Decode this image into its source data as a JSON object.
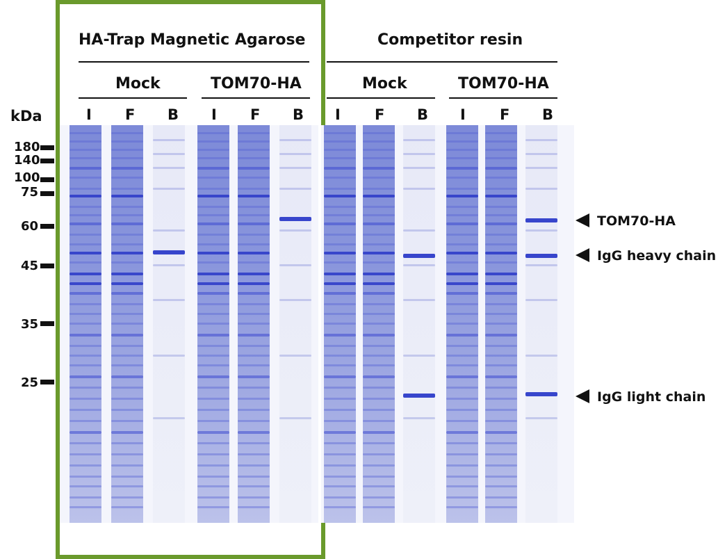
{
  "figure": {
    "group_left": "HA-Trap Magnetic Agarose",
    "group_right": "Competitor resin",
    "subgroups": [
      "Mock",
      "TOM70-HA",
      "Mock",
      "TOM70-HA"
    ],
    "lane_labels": [
      "I",
      "F",
      "B",
      "I",
      "F",
      "B",
      "I",
      "F",
      "B",
      "I",
      "F",
      "B"
    ],
    "kda_label": "kDa",
    "markers": [
      "180",
      "140",
      "100",
      "75",
      "60",
      "45",
      "35",
      "25"
    ],
    "annotations": [
      "TOM70-HA",
      "IgG heavy chain",
      "IgG light chain"
    ],
    "frame_color": "#6a9a2c",
    "stain_color": "#2a38c8"
  }
}
